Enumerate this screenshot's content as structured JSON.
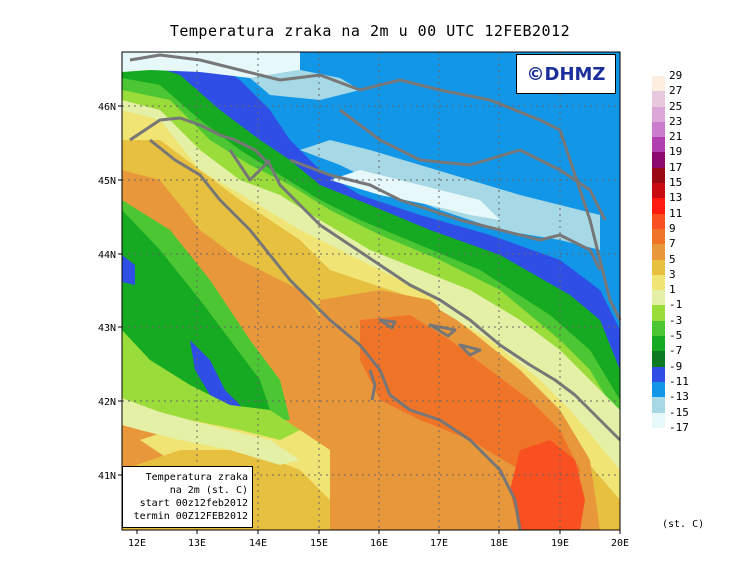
{
  "title": "Temperatura zraka na 2m u 00 UTC 12FEB2012",
  "logo": "©DHMZ",
  "info_box": {
    "line1": "Temperatura zraka",
    "line2": "na 2m (st. C)",
    "line3": "start 00z12feb2012",
    "line4": "termin 00Z12FEB2012"
  },
  "axes": {
    "lat_labels": [
      "46N",
      "45N",
      "44N",
      "43N",
      "42N",
      "41N"
    ],
    "lon_labels": [
      "12E",
      "13E",
      "14E",
      "15E",
      "16E",
      "17E",
      "18E",
      "19E",
      "20E"
    ],
    "lat_range": [
      40.3,
      46.9
    ],
    "lon_range": [
      11.9,
      20.0
    ],
    "grid": "dotted"
  },
  "legend": {
    "unit": "(st. C)",
    "levels": [
      {
        "label": "29",
        "color": "#fdeee0"
      },
      {
        "label": "27",
        "color": "#e8c8dc"
      },
      {
        "label": "25",
        "color": "#dca6d6"
      },
      {
        "label": "23",
        "color": "#cc7ccc"
      },
      {
        "label": "21",
        "color": "#b040b0"
      },
      {
        "label": "19",
        "color": "#8c0a6e"
      },
      {
        "label": "17",
        "color": "#9a0a14"
      },
      {
        "label": "15",
        "color": "#c80c10"
      },
      {
        "label": "13",
        "color": "#ff1a10"
      },
      {
        "label": "11",
        "color": "#f85020"
      },
      {
        "label": "9",
        "color": "#f07428"
      },
      {
        "label": "7",
        "color": "#e8983a"
      },
      {
        "label": "5",
        "color": "#e8c040"
      },
      {
        "label": "3",
        "color": "#f0e474"
      },
      {
        "label": "1",
        "color": "#e4f0a6"
      },
      {
        "label": "-1",
        "color": "#9adc3a"
      },
      {
        "label": "-3",
        "color": "#4cc632"
      },
      {
        "label": "-5",
        "color": "#16aa22"
      },
      {
        "label": "-7",
        "color": "#0c7a20"
      },
      {
        "label": "-9",
        "color": "#2e4ee6"
      },
      {
        "label": "-11",
        "color": "#1296e8"
      },
      {
        "label": "-13",
        "color": "#a6d8e6"
      },
      {
        "label": "-15",
        "color": "#e6f8fa"
      },
      {
        "label": "-17",
        "color": ""
      }
    ]
  }
}
